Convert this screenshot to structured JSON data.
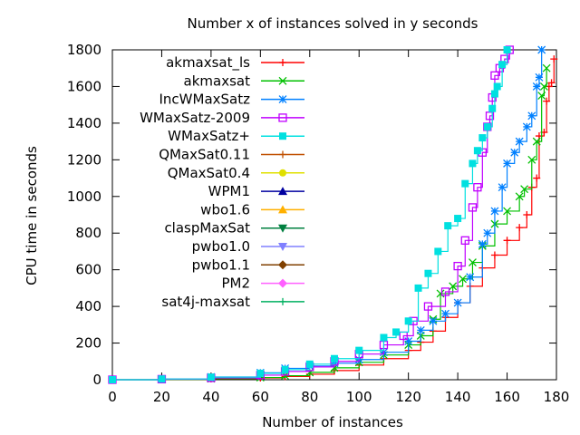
{
  "chart_data": {
    "type": "line",
    "title": "Number x of instances solved in y seconds",
    "xlabel": "Number of instances",
    "ylabel": "CPU time in seconds",
    "xlim": [
      0,
      180
    ],
    "ylim": [
      0,
      1800
    ],
    "xticks": [
      0,
      20,
      40,
      60,
      80,
      100,
      120,
      140,
      160,
      180
    ],
    "yticks": [
      0,
      200,
      400,
      600,
      800,
      1000,
      1200,
      1400,
      1600,
      1800
    ],
    "grid": false,
    "legend": "top-left",
    "series": [
      {
        "name": "akmaxsat_ls",
        "color": "#ff0000",
        "marker": "plus",
        "points": [
          [
            0,
            0
          ],
          [
            20,
            2
          ],
          [
            40,
            5
          ],
          [
            60,
            10
          ],
          [
            70,
            18
          ],
          [
            80,
            30
          ],
          [
            90,
            50
          ],
          [
            100,
            80
          ],
          [
            110,
            115
          ],
          [
            120,
            160
          ],
          [
            125,
            205
          ],
          [
            130,
            265
          ],
          [
            135,
            340
          ],
          [
            140,
            420
          ],
          [
            145,
            510
          ],
          [
            150,
            610
          ],
          [
            155,
            680
          ],
          [
            160,
            760
          ],
          [
            165,
            830
          ],
          [
            168,
            900
          ],
          [
            170,
            1050
          ],
          [
            172,
            1100
          ],
          [
            173,
            1330
          ],
          [
            175,
            1350
          ],
          [
            176,
            1520
          ],
          [
            177,
            1600
          ],
          [
            178,
            1620
          ],
          [
            179,
            1750
          ]
        ]
      },
      {
        "name": "akmaxsat",
        "color": "#00c000",
        "marker": "x",
        "points": [
          [
            0,
            0
          ],
          [
            20,
            2
          ],
          [
            40,
            6
          ],
          [
            60,
            12
          ],
          [
            70,
            22
          ],
          [
            80,
            40
          ],
          [
            90,
            65
          ],
          [
            100,
            95
          ],
          [
            110,
            135
          ],
          [
            120,
            190
          ],
          [
            125,
            240
          ],
          [
            130,
            330
          ],
          [
            133,
            470
          ],
          [
            138,
            510
          ],
          [
            142,
            550
          ],
          [
            146,
            640
          ],
          [
            150,
            730
          ],
          [
            155,
            850
          ],
          [
            160,
            920
          ],
          [
            165,
            1000
          ],
          [
            167,
            1040
          ],
          [
            170,
            1200
          ],
          [
            172,
            1300
          ],
          [
            174,
            1550
          ],
          [
            175,
            1600
          ],
          [
            176,
            1700
          ]
        ]
      },
      {
        "name": "IncWMaxSatz",
        "color": "#0080ff",
        "marker": "star",
        "points": [
          [
            0,
            0
          ],
          [
            20,
            4
          ],
          [
            40,
            15
          ],
          [
            60,
            38
          ],
          [
            70,
            62
          ],
          [
            80,
            75
          ],
          [
            90,
            90
          ],
          [
            100,
            110
          ],
          [
            110,
            150
          ],
          [
            120,
            210
          ],
          [
            125,
            270
          ],
          [
            130,
            320
          ],
          [
            135,
            360
          ],
          [
            140,
            420
          ],
          [
            145,
            560
          ],
          [
            150,
            740
          ],
          [
            152,
            800
          ],
          [
            155,
            920
          ],
          [
            158,
            1050
          ],
          [
            160,
            1180
          ],
          [
            163,
            1240
          ],
          [
            165,
            1300
          ],
          [
            168,
            1380
          ],
          [
            170,
            1440
          ],
          [
            172,
            1600
          ],
          [
            173,
            1650
          ],
          [
            174,
            1800
          ]
        ]
      },
      {
        "name": "WMaxSatz-2009",
        "color": "#c000ff",
        "marker": "square",
        "points": [
          [
            0,
            0
          ],
          [
            20,
            3
          ],
          [
            40,
            10
          ],
          [
            60,
            25
          ],
          [
            70,
            45
          ],
          [
            80,
            70
          ],
          [
            90,
            100
          ],
          [
            100,
            140
          ],
          [
            110,
            190
          ],
          [
            118,
            240
          ],
          [
            122,
            320
          ],
          [
            128,
            400
          ],
          [
            135,
            480
          ],
          [
            140,
            620
          ],
          [
            143,
            760
          ],
          [
            146,
            940
          ],
          [
            148,
            1050
          ],
          [
            150,
            1240
          ],
          [
            152,
            1380
          ],
          [
            153,
            1440
          ],
          [
            154,
            1540
          ],
          [
            155,
            1660
          ],
          [
            157,
            1700
          ],
          [
            159,
            1750
          ],
          [
            161,
            1800
          ]
        ]
      },
      {
        "name": "WMaxSatz+",
        "color": "#00e0e0",
        "marker": "square-filled",
        "points": [
          [
            0,
            0
          ],
          [
            20,
            4
          ],
          [
            40,
            14
          ],
          [
            60,
            35
          ],
          [
            70,
            55
          ],
          [
            80,
            85
          ],
          [
            90,
            115
          ],
          [
            100,
            160
          ],
          [
            110,
            230
          ],
          [
            115,
            260
          ],
          [
            120,
            320
          ],
          [
            124,
            500
          ],
          [
            128,
            580
          ],
          [
            132,
            700
          ],
          [
            136,
            840
          ],
          [
            140,
            880
          ],
          [
            143,
            1070
          ],
          [
            146,
            1180
          ],
          [
            148,
            1250
          ],
          [
            150,
            1320
          ],
          [
            152,
            1380
          ],
          [
            154,
            1480
          ],
          [
            155,
            1560
          ],
          [
            156,
            1600
          ],
          [
            158,
            1720
          ],
          [
            160,
            1800
          ]
        ]
      },
      {
        "name": "QMaxSat0.11",
        "color": "#c05000",
        "marker": "plus",
        "points": []
      },
      {
        "name": "QMaxSat0.4",
        "color": "#e0e000",
        "marker": "circle",
        "points": []
      },
      {
        "name": "WPM1",
        "color": "#0000a0",
        "marker": "triangle",
        "points": []
      },
      {
        "name": "wbo1.6",
        "color": "#ffb000",
        "marker": "triangle",
        "points": []
      },
      {
        "name": "claspMaxSat",
        "color": "#008040",
        "marker": "triangle-down",
        "points": []
      },
      {
        "name": "pwbo1.0",
        "color": "#8080ff",
        "marker": "triangle-down",
        "points": []
      },
      {
        "name": "pwbo1.1",
        "color": "#804000",
        "marker": "diamond",
        "points": []
      },
      {
        "name": "PM2",
        "color": "#ff60ff",
        "marker": "diamond",
        "points": []
      },
      {
        "name": "sat4j-maxsat",
        "color": "#00b060",
        "marker": "plus",
        "points": []
      }
    ]
  }
}
